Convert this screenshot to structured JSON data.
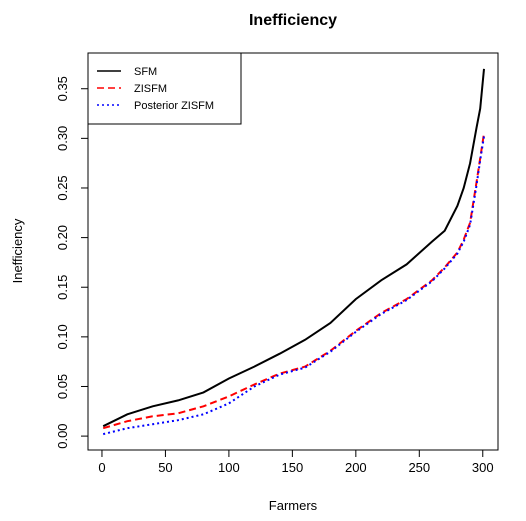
{
  "chart_data": {
    "type": "line",
    "title": "Inefficiency",
    "x_label": "Farmers",
    "y_label": "Inefficiency",
    "x": [
      1,
      20,
      40,
      60,
      80,
      100,
      120,
      140,
      160,
      180,
      200,
      220,
      240,
      260,
      270,
      280,
      285,
      290,
      295,
      298,
      301
    ],
    "series": [
      {
        "name": "SFM",
        "color": "#000000",
        "dash": "solid",
        "values": [
          0.01,
          0.022,
          0.03,
          0.036,
          0.044,
          0.058,
          0.07,
          0.083,
          0.097,
          0.114,
          0.138,
          0.157,
          0.173,
          0.196,
          0.207,
          0.232,
          0.25,
          0.275,
          0.31,
          0.33,
          0.37
        ]
      },
      {
        "name": "ZISFM",
        "color": "#ff0000",
        "dash": "dashed",
        "values": [
          0.008,
          0.015,
          0.02,
          0.023,
          0.03,
          0.04,
          0.052,
          0.063,
          0.07,
          0.086,
          0.106,
          0.124,
          0.138,
          0.157,
          0.17,
          0.185,
          0.198,
          0.215,
          0.255,
          0.28,
          0.305
        ]
      },
      {
        "name": "Posterior ZISFM",
        "color": "#0000ff",
        "dash": "dotted",
        "values": [
          0.002,
          0.008,
          0.012,
          0.016,
          0.022,
          0.033,
          0.05,
          0.062,
          0.069,
          0.085,
          0.105,
          0.123,
          0.137,
          0.156,
          0.169,
          0.184,
          0.196,
          0.213,
          0.252,
          0.278,
          0.302
        ]
      }
    ],
    "xlim": [
      -11,
      312
    ],
    "xticks": [
      0,
      50,
      100,
      150,
      200,
      250,
      300
    ],
    "ylim": [
      -0.014,
      0.386
    ],
    "yticks": [
      {
        "value": 0,
        "label": "0.00"
      },
      {
        "value": 0.05,
        "label": "0.05"
      },
      {
        "value": 0.1,
        "label": "0.10"
      },
      {
        "value": 0.15,
        "label": "0.15"
      },
      {
        "value": 0.2,
        "label": "0.20"
      },
      {
        "value": 0.25,
        "label": "0.25"
      },
      {
        "value": 0.3,
        "label": "0.30"
      },
      {
        "value": 0.35,
        "label": "0.35"
      }
    ],
    "legend": "top-left"
  }
}
